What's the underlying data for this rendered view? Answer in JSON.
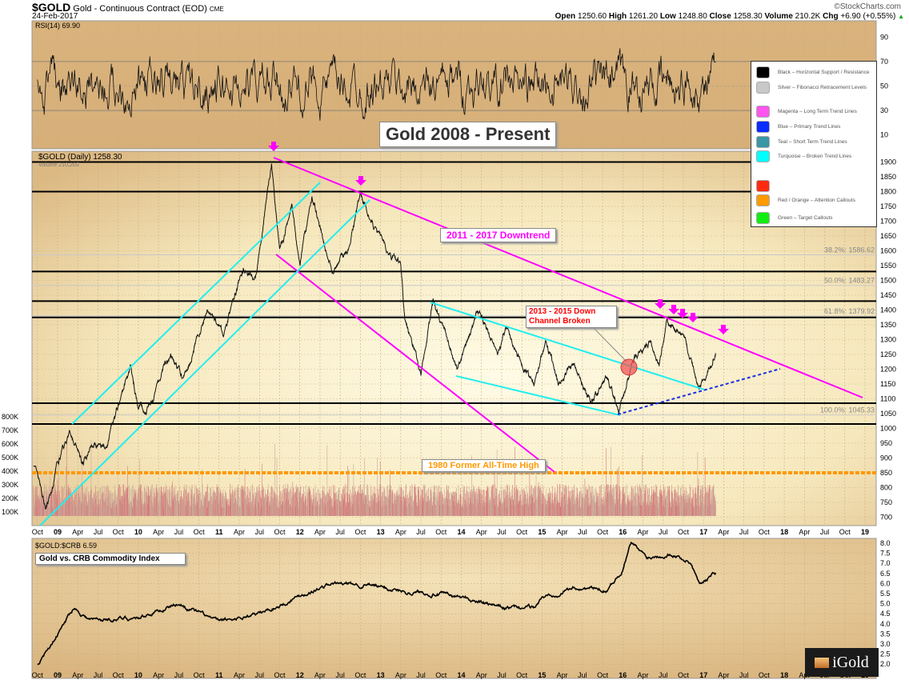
{
  "header": {
    "symbol": "$GOLD",
    "name": "Gold - Continuous Contract (EOD)",
    "exchange": "CME",
    "date": "24-Feb-2017",
    "brand": "©StockCharts.com",
    "quote": [
      {
        "k": "Open",
        "v": "1250.60"
      },
      {
        "k": "High",
        "v": "1261.20"
      },
      {
        "k": "Low",
        "v": "1248.80"
      },
      {
        "k": "Close",
        "v": "1258.30"
      },
      {
        "k": "Volume",
        "v": "210.2K"
      },
      {
        "k": "Chg",
        "v": "+6.90 (+0.55%)"
      }
    ],
    "up_arrow": "▲"
  },
  "rsi_panel": {
    "label": "RSI(14) 69.90",
    "ticks": [
      "90",
      "70",
      "50",
      "30",
      "10"
    ]
  },
  "price_panel": {
    "label": "$GOLD (Daily) 1258.30",
    "volume_label": "Volume 210,205",
    "ticks": [
      "1900",
      "1850",
      "1800",
      "1750",
      "1700",
      "1650",
      "1600",
      "1550",
      "1500",
      "1450",
      "1400",
      "1350",
      "1300",
      "1250",
      "1200",
      "1150",
      "1100",
      "1050",
      "1000",
      "950",
      "900",
      "850",
      "800",
      "750",
      "700"
    ],
    "volume_ticks": [
      "800K",
      "700K",
      "600K",
      "500K",
      "400K",
      "300K",
      "200K",
      "100K"
    ],
    "fib_labels": [
      "38.2%: 1586.62",
      "50.0%: 1483.27",
      "61.8%: 1379.92",
      "100.0%: 1045.33"
    ]
  },
  "ratio_panel": {
    "label": "$GOLD:$CRB 6.59",
    "ticks": [
      "8.0",
      "7.5",
      "7.0",
      "6.5",
      "6.0",
      "5.5",
      "5.0",
      "4.5",
      "4.0",
      "3.5",
      "3.0",
      "2.5",
      "2.0"
    ]
  },
  "time_axis": [
    "Oct",
    "09",
    "Apr",
    "Jul",
    "Oct",
    "10",
    "Apr",
    "Jul",
    "Oct",
    "11",
    "Apr",
    "Jul",
    "Oct",
    "12",
    "Apr",
    "Jul",
    "Oct",
    "13",
    "Apr",
    "Jul",
    "Oct",
    "14",
    "Apr",
    "Jul",
    "Oct",
    "15",
    "Apr",
    "Jul",
    "Oct",
    "16",
    "Apr",
    "Jul",
    "Oct",
    "17",
    "Apr",
    "Jul",
    "Oct",
    "18",
    "Apr",
    "Jul",
    "Oct",
    "19"
  ],
  "annotations": {
    "title": "Gold 2008 - Present",
    "downtrend": "2011 - 2017 Downtrend",
    "ath": "1980 Former All-Time High",
    "channel_line1": "2013 - 2015 Down",
    "channel_line2": "Channel Broken",
    "ratio_title": "Gold vs. CRB Commodity Index"
  },
  "legend": [
    {
      "label": "Black – Horizontal Support / Resistance",
      "color": "#000000"
    },
    {
      "label": "Silver – Fibonacci Retracement Levels",
      "color": "#c8c8c8"
    },
    {
      "label": "Magenta – Long Term Trend Lines",
      "color": "#ff55ee"
    },
    {
      "label": "Blue – Primary Trend Lines",
      "color": "#0a2cff"
    },
    {
      "label": "Teal – Short Term Trend Lines",
      "color": "#3a97a5"
    },
    {
      "label": "Turquoise – Broken Trend Lines",
      "color": "#00ffff"
    },
    {
      "label": "",
      "color": "#ff2a10"
    },
    {
      "label": "Red / Orange – Attention Callouts",
      "color": "#ff9a00"
    },
    {
      "label": "Green – Target Callouts",
      "color": "#11ee11"
    }
  ],
  "logo": "iGold",
  "chart_data": {
    "type": "line",
    "title": "Gold 2008 - Present",
    "price_series": {
      "name": "$GOLD",
      "x": [
        2008.7,
        2008.85,
        2009.0,
        2009.15,
        2009.3,
        2009.45,
        2009.6,
        2009.9,
        2010.0,
        2010.1,
        2010.4,
        2010.55,
        2010.85,
        2011.05,
        2011.3,
        2011.45,
        2011.65,
        2011.75,
        2011.9,
        2012.0,
        2012.15,
        2012.4,
        2012.6,
        2012.75,
        2012.95,
        2013.1,
        2013.25,
        2013.3,
        2013.5,
        2013.65,
        2013.95,
        2014.2,
        2014.45,
        2014.55,
        2014.9,
        2015.05,
        2015.2,
        2015.4,
        2015.6,
        2015.8,
        2015.95,
        2016.15,
        2016.35,
        2016.45,
        2016.55,
        2016.75,
        2016.95,
        2017.15
      ],
      "values": [
        880,
        720,
        880,
        980,
        880,
        960,
        930,
        1210,
        1080,
        1060,
        1250,
        1160,
        1400,
        1310,
        1550,
        1500,
        1900,
        1600,
        1750,
        1550,
        1780,
        1530,
        1600,
        1790,
        1660,
        1600,
        1550,
        1380,
        1190,
        1420,
        1200,
        1390,
        1250,
        1340,
        1140,
        1300,
        1150,
        1220,
        1080,
        1180,
        1050,
        1250,
        1300,
        1220,
        1370,
        1310,
        1130,
        1258
      ]
    },
    "ratio_series": {
      "name": "$GOLD:$CRB",
      "x": [
        2008.75,
        2009.0,
        2009.2,
        2009.4,
        2010.0,
        2010.5,
        2011.0,
        2011.5,
        2011.8,
        2012.0,
        2012.4,
        2012.9,
        2013.3,
        2013.7,
        2014.0,
        2014.5,
        2014.9,
        2015.0,
        2015.4,
        2015.8,
        2016.0,
        2016.1,
        2016.3,
        2016.6,
        2016.85,
        2016.95,
        2017.15
      ],
      "values": [
        2.0,
        3.5,
        4.8,
        4.2,
        4.3,
        5.0,
        4.1,
        4.5,
        5.0,
        5.4,
        6.0,
        5.9,
        5.6,
        5.5,
        5.3,
        4.8,
        4.8,
        5.3,
        5.8,
        5.7,
        6.7,
        8.0,
        7.3,
        7.5,
        7.0,
        6.0,
        6.59
      ]
    },
    "rsi_last": 69.9,
    "support_resistance": [
      1900,
      1800,
      1530,
      1430,
      1375,
      1085,
      1015
    ],
    "fibonacci": [
      1586.62,
      1483.27,
      1379.92,
      1045.33
    ],
    "former_ath": 850,
    "ylim": [
      680,
      1950
    ],
    "ratio_ylim": [
      2,
      8
    ],
    "rsi_ylim": [
      0,
      100
    ],
    "xlim": [
      2008.7,
      2019.1
    ]
  }
}
